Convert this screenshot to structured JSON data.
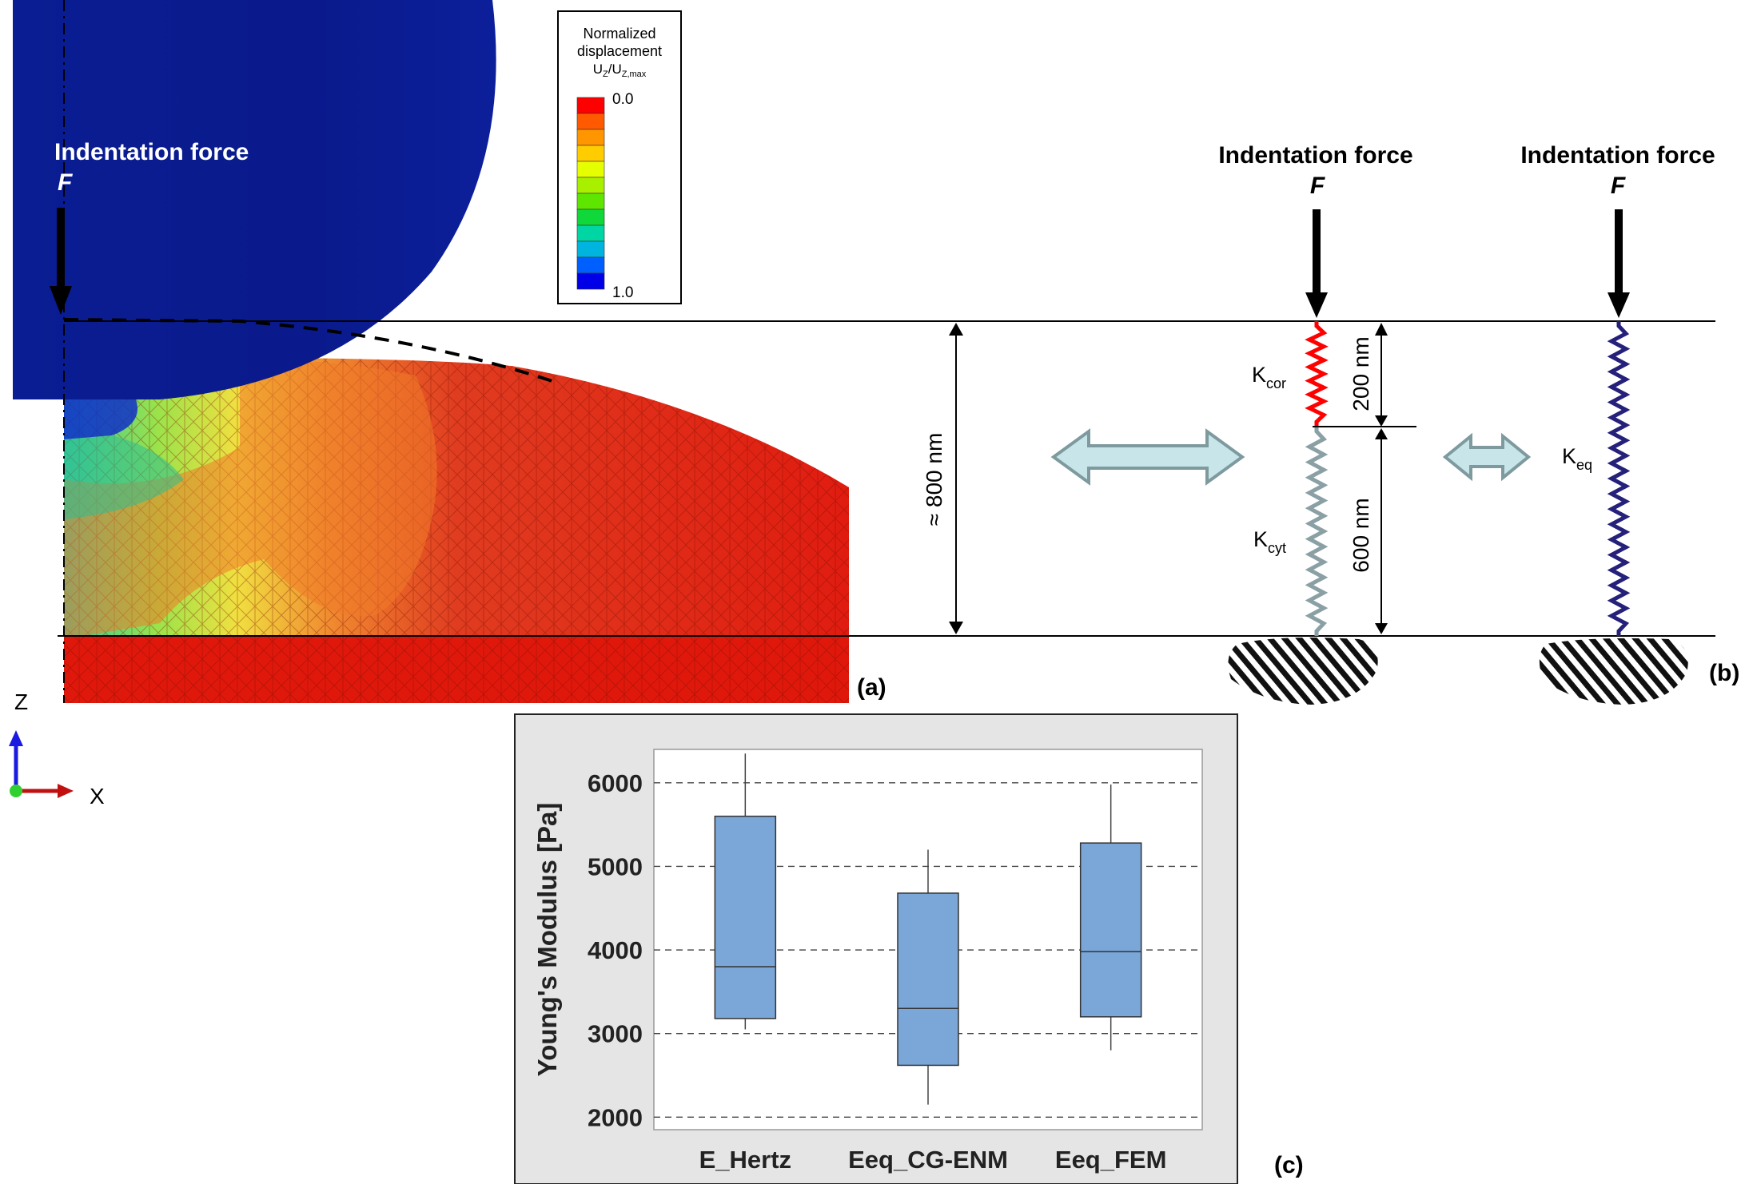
{
  "panel_a": {
    "force_title": "Indentation force",
    "force_symbol": "F",
    "legend": {
      "title_lines": [
        "Normalized",
        "displacement"
      ],
      "quantity": "U",
      "quantity_sub": "Z",
      "quantity_slash": "/U",
      "quantity_sub2": "Z,max",
      "top_value": "0.0",
      "bottom_value": "1.0",
      "colors": [
        "#ff0000",
        "#ff5a00",
        "#ff9600",
        "#ffcc00",
        "#e6ff00",
        "#a8f000",
        "#5ee600",
        "#10d83a",
        "#00d6a4",
        "#00b4e0",
        "#0060ff",
        "#0000e8"
      ]
    },
    "height_label": "≈ 800 nm",
    "label": "(a)",
    "axis_z": "Z",
    "axis_x": "X"
  },
  "panel_b": {
    "force_title_1": "Indentation force",
    "force_symbol_1": "F",
    "force_title_2": "Indentation force",
    "force_symbol_2": "F",
    "k_cor": "K",
    "k_cor_sub": "cor",
    "k_cyt": "K",
    "k_cyt_sub": "cyt",
    "k_eq": "K",
    "k_eq_sub": "eq",
    "dim_top": "200 nm",
    "dim_bottom": "600 nm",
    "label": "(b)",
    "colors": {
      "cortex": "#ff0000",
      "cytoplasm": "#8aa0a4",
      "equivalent": "#25207a",
      "arrow": "#c8e6ea"
    }
  },
  "panel_c": {
    "label": "(c)",
    "chart_data": {
      "type": "box",
      "ylabel": "Young's Modulus [Pa]",
      "ylim": [
        1850,
        6400
      ],
      "yticks": [
        "2000",
        "3000",
        "4000",
        "5000",
        "6000"
      ],
      "grid": "dashed horizontal",
      "categories": [
        "E_Hertz",
        "Eeq_CG-ENM",
        "Eeq_FEM"
      ],
      "boxes": [
        {
          "name": "E_Hertz",
          "min": 3050,
          "q1": 3180,
          "median": 3800,
          "q3": 5600,
          "max": 6350
        },
        {
          "name": "Eeq_CG-ENM",
          "min": 2150,
          "q1": 2620,
          "median": 3300,
          "q3": 4680,
          "max": 5200
        },
        {
          "name": "Eeq_FEM",
          "min": 2800,
          "q1": 3200,
          "median": 3980,
          "q3": 5280,
          "max": 5980
        }
      ],
      "box_color": "#7aa6d8"
    }
  }
}
